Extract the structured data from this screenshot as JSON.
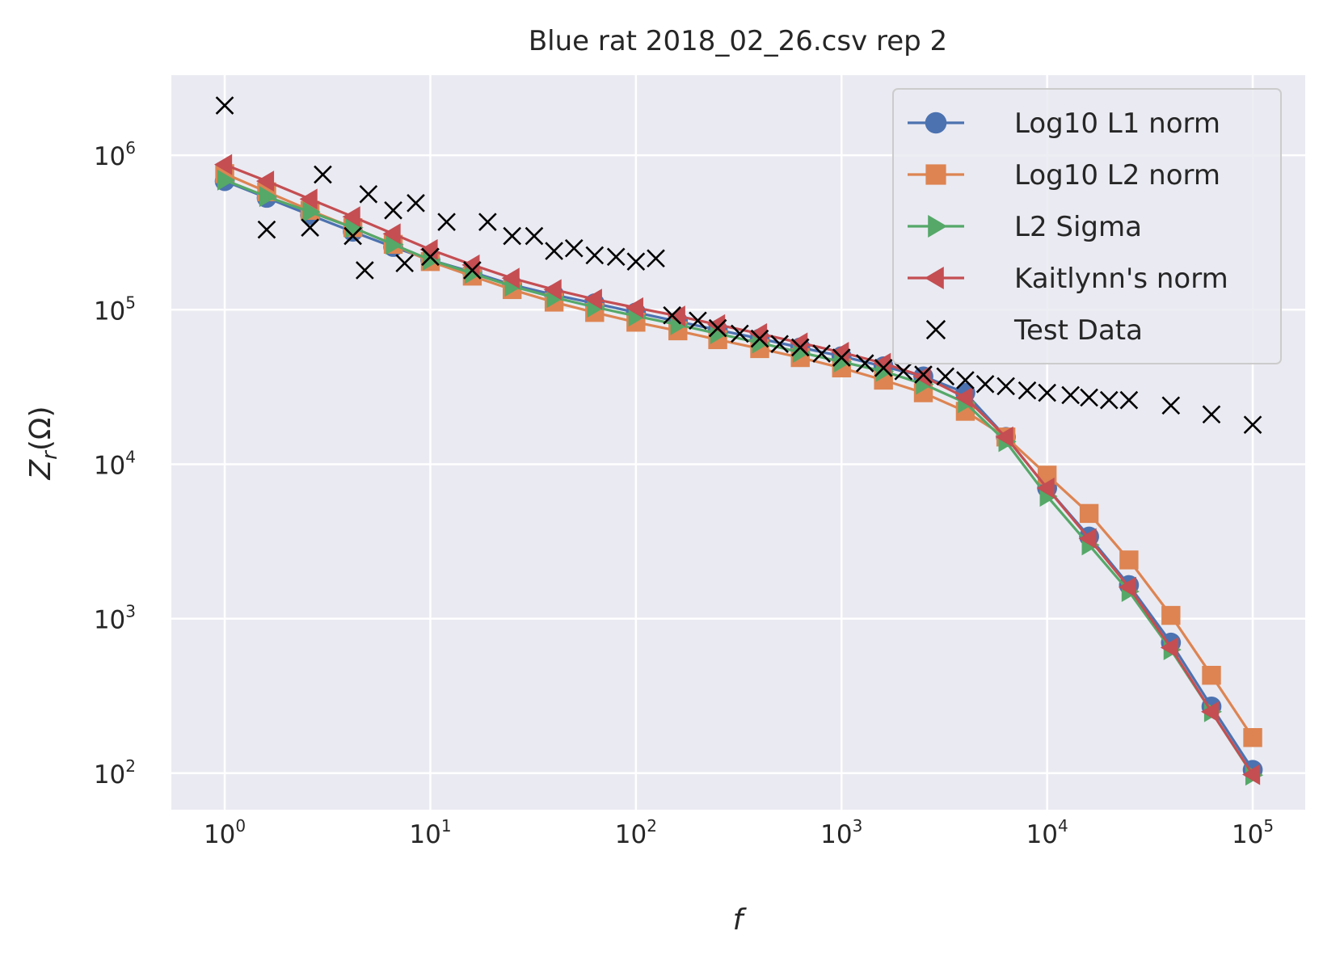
{
  "chart_data": {
    "type": "line",
    "title": "Blue rat 2018_02_26.csv rep 2",
    "xlabel": "f",
    "ylabel": "Z_r(Ω)",
    "xscale": "log",
    "yscale": "log",
    "xlim": [
      0.55,
      180000
    ],
    "ylim": [
      58,
      3300000
    ],
    "grid": true,
    "legend_position": "top-right",
    "x_ticks": [
      {
        "value": 1,
        "base": "10",
        "exp": "0"
      },
      {
        "value": 10,
        "base": "10",
        "exp": "1"
      },
      {
        "value": 100,
        "base": "10",
        "exp": "2"
      },
      {
        "value": 1000,
        "base": "10",
        "exp": "3"
      },
      {
        "value": 10000,
        "base": "10",
        "exp": "4"
      },
      {
        "value": 100000,
        "base": "10",
        "exp": "5"
      }
    ],
    "y_ticks": [
      {
        "value": 100,
        "base": "10",
        "exp": "2"
      },
      {
        "value": 1000,
        "base": "10",
        "exp": "3"
      },
      {
        "value": 10000,
        "base": "10",
        "exp": "4"
      },
      {
        "value": 100000,
        "base": "10",
        "exp": "5"
      },
      {
        "value": 1000000,
        "base": "10",
        "exp": "6"
      }
    ],
    "x": [
      1,
      1.6,
      2.6,
      4.2,
      6.6,
      10,
      16,
      25,
      40,
      63,
      100,
      160,
      250,
      400,
      630,
      1000,
      1600,
      2500,
      4000,
      6300,
      10000,
      16000,
      25000,
      40000,
      63000,
      100000
    ],
    "series": [
      {
        "name": "Log10 L1 norm",
        "color": "#4c72b0",
        "marker": "circle",
        "y": [
          680000,
          530000,
          410000,
          320000,
          255000,
          210000,
          175000,
          145000,
          125000,
          110000,
          96000,
          84000,
          74000,
          65000,
          57000,
          50000,
          43000,
          37000,
          29000,
          15000,
          7000,
          3400,
          1650,
          700,
          270,
          105
        ]
      },
      {
        "name": "Log10 L2 norm",
        "color": "#dd8452",
        "marker": "square",
        "y": [
          760000,
          580000,
          440000,
          340000,
          265000,
          205000,
          165000,
          135000,
          112000,
          96000,
          83000,
          73000,
          64000,
          56000,
          49000,
          42000,
          35000,
          29000,
          22000,
          15000,
          8500,
          4800,
          2400,
          1050,
          430,
          170
        ]
      },
      {
        "name": "L2 Sigma",
        "color": "#55a868",
        "marker": "triangle-right",
        "y": [
          690000,
          540000,
          430000,
          340000,
          265000,
          210000,
          172000,
          142000,
          120000,
          104000,
          91000,
          80000,
          70000,
          61000,
          53000,
          46000,
          40000,
          33000,
          25000,
          14000,
          6200,
          3000,
          1500,
          630,
          250,
          97
        ]
      },
      {
        "name": "Kaitlynn's norm",
        "color": "#c44e52",
        "marker": "triangle-left",
        "y": [
          870000,
          680000,
          520000,
          400000,
          310000,
          245000,
          195000,
          160000,
          135000,
          117000,
          103000,
          91000,
          80000,
          70000,
          61000,
          53000,
          45000,
          37000,
          27000,
          15000,
          7000,
          3300,
          1600,
          650,
          250,
          98
        ]
      }
    ],
    "test_data": {
      "name": "Test Data",
      "color": "#000000",
      "marker": "x",
      "points": [
        [
          1,
          2100000
        ],
        [
          1.6,
          330000
        ],
        [
          2.6,
          340000
        ],
        [
          3,
          750000
        ],
        [
          4.2,
          300000
        ],
        [
          4.8,
          180000
        ],
        [
          5,
          560000
        ],
        [
          6.6,
          440000
        ],
        [
          7.5,
          200000
        ],
        [
          8.5,
          490000
        ],
        [
          10,
          220000
        ],
        [
          12,
          370000
        ],
        [
          16,
          180000
        ],
        [
          19,
          370000
        ],
        [
          25,
          300000
        ],
        [
          32,
          300000
        ],
        [
          40,
          240000
        ],
        [
          50,
          250000
        ],
        [
          63,
          225000
        ],
        [
          80,
          220000
        ],
        [
          100,
          205000
        ],
        [
          125,
          215000
        ],
        [
          150,
          92000
        ],
        [
          200,
          85000
        ],
        [
          250,
          76000
        ],
        [
          320,
          70000
        ],
        [
          400,
          65000
        ],
        [
          500,
          60000
        ],
        [
          630,
          57000
        ],
        [
          800,
          52000
        ],
        [
          1000,
          49000
        ],
        [
          1300,
          45000
        ],
        [
          1600,
          42000
        ],
        [
          2000,
          40000
        ],
        [
          2500,
          38000
        ],
        [
          3200,
          37000
        ],
        [
          4000,
          35000
        ],
        [
          5000,
          33000
        ],
        [
          6300,
          32000
        ],
        [
          8000,
          30000
        ],
        [
          10000,
          29000
        ],
        [
          13000,
          28000
        ],
        [
          16000,
          27000
        ],
        [
          20000,
          26000
        ],
        [
          25000,
          26000
        ],
        [
          40000,
          24000
        ],
        [
          63000,
          21000
        ],
        [
          100000,
          18000
        ]
      ]
    }
  }
}
